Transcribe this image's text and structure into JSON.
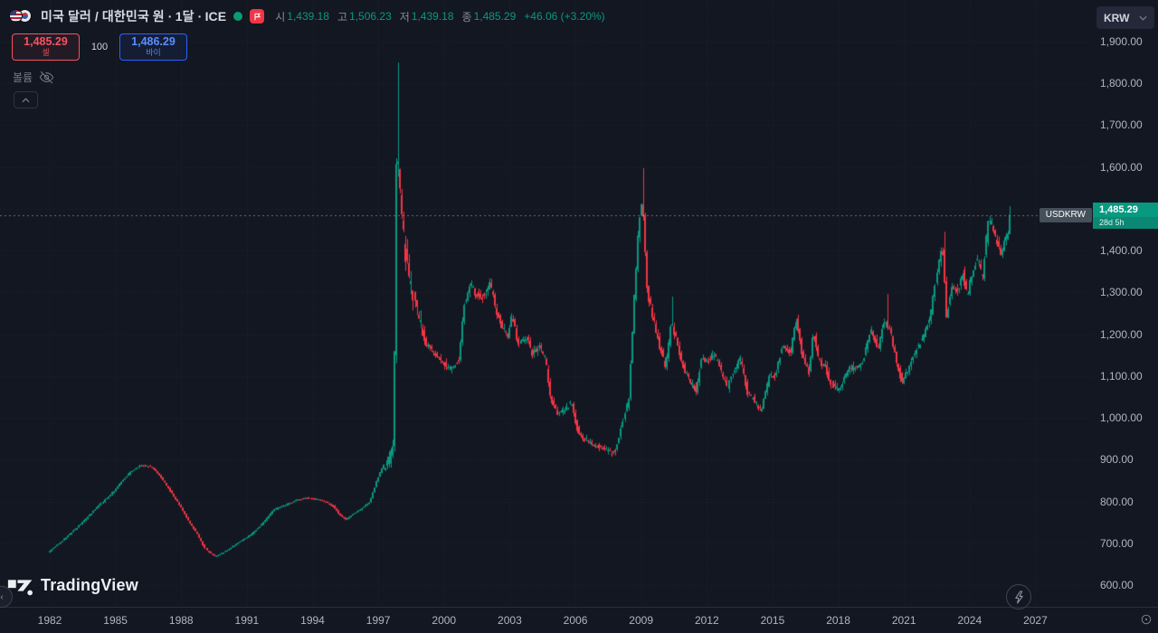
{
  "header": {
    "title": "미국 달러 / 대한민국 원 ∙ 1달 ∙ ICE",
    "open_label": "시",
    "open_value": "1,439.18",
    "high_label": "고",
    "high_value": "1,506.23",
    "low_label": "저",
    "low_value": "1,439.18",
    "close_label": "종",
    "close_value": "1,485.29",
    "change_value": "+46.06 (+3.20%)"
  },
  "trade_panel": {
    "sell_price": "1,485.29",
    "sell_label": "셀",
    "quantity": "100",
    "buy_price": "1,486.29",
    "buy_label": "바이"
  },
  "legend": {
    "volume_label": "볼륨"
  },
  "price_scale": {
    "currency_label": "KRW",
    "labels": [
      "1,900.00",
      "1,800.00",
      "1,700.00",
      "1,600.00",
      "1,500.00",
      "1,400.00",
      "1,300.00",
      "1,200.00",
      "1,100.00",
      "1,000.00",
      "900.00",
      "800.00",
      "700.00",
      "600.00"
    ],
    "price_line": {
      "symbol_label": "USDKRW",
      "price": "1,485.29",
      "countdown": "28d 5h"
    }
  },
  "time_scale": {
    "labels": [
      "1982",
      "1985",
      "1988",
      "1991",
      "1994",
      "1997",
      "2000",
      "2003",
      "2006",
      "2009",
      "2012",
      "2015",
      "2018",
      "2021",
      "2024",
      "2027"
    ]
  },
  "watermark": {
    "brand": "TradingView"
  },
  "chart_data": {
    "type": "candlestick",
    "title": "미국 달러 / 대한민국 원 ∙ 1달 ∙ ICE",
    "symbol": "USDKRW",
    "interval": "1M",
    "up_color": "#089981",
    "down_color": "#f23645",
    "x_ticks": [
      1982,
      1985,
      1988,
      1991,
      1994,
      1997,
      2000,
      2003,
      2006,
      2009,
      2012,
      2015,
      2018,
      2021,
      2024,
      2027
    ],
    "y_ticks": [
      600,
      700,
      800,
      900,
      1000,
      1100,
      1200,
      1300,
      1400,
      1500,
      1600,
      1700,
      1800,
      1900
    ],
    "y_domain": [
      560,
      1920
    ],
    "price_line_value": 1485.29,
    "current_bar": {
      "open": 1439.18,
      "high": 1506.23,
      "low": 1439.18,
      "close": 1485.29,
      "change": 46.06,
      "change_pct": 3.2
    },
    "last_bar_time": 2025.83,
    "anchors": [
      [
        1982.0,
        678
      ],
      [
        1982.5,
        700
      ],
      [
        1983.0,
        722
      ],
      [
        1983.5,
        746
      ],
      [
        1984.0,
        772
      ],
      [
        1984.5,
        800
      ],
      [
        1985.0,
        825
      ],
      [
        1985.4,
        852
      ],
      [
        1985.8,
        872
      ],
      [
        1986.2,
        886
      ],
      [
        1986.7,
        884
      ],
      [
        1987.1,
        862
      ],
      [
        1987.5,
        832
      ],
      [
        1988.0,
        792
      ],
      [
        1988.4,
        755
      ],
      [
        1988.8,
        724
      ],
      [
        1989.2,
        685
      ],
      [
        1989.6,
        668
      ],
      [
        1990.0,
        678
      ],
      [
        1990.4,
        692
      ],
      [
        1990.8,
        705
      ],
      [
        1991.3,
        722
      ],
      [
        1991.8,
        748
      ],
      [
        1992.3,
        780
      ],
      [
        1992.8,
        790
      ],
      [
        1993.3,
        802
      ],
      [
        1993.8,
        808
      ],
      [
        1994.2,
        806
      ],
      [
        1994.6,
        800
      ],
      [
        1995.0,
        788
      ],
      [
        1995.3,
        768
      ],
      [
        1995.6,
        756
      ],
      [
        1995.9,
        770
      ],
      [
        1996.3,
        782
      ],
      [
        1996.7,
        800
      ],
      [
        1997.0,
        848
      ],
      [
        1997.3,
        885
      ],
      [
        1997.6,
        895
      ],
      [
        1997.8,
        958
      ],
      [
        1997.92,
        1640
      ],
      [
        1998.08,
        1555
      ],
      [
        1998.3,
        1395
      ],
      [
        1998.6,
        1310
      ],
      [
        1998.9,
        1240
      ],
      [
        1999.2,
        1180
      ],
      [
        1999.6,
        1158
      ],
      [
        2000.0,
        1130
      ],
      [
        2000.4,
        1115
      ],
      [
        2000.75,
        1140
      ],
      [
        2001.0,
        1270
      ],
      [
        2001.3,
        1318
      ],
      [
        2001.6,
        1292
      ],
      [
        2001.9,
        1290
      ],
      [
        2002.2,
        1320
      ],
      [
        2002.5,
        1250
      ],
      [
        2002.8,
        1212
      ],
      [
        2003.0,
        1192
      ],
      [
        2003.2,
        1248
      ],
      [
        2003.5,
        1172
      ],
      [
        2003.8,
        1195
      ],
      [
        2004.1,
        1152
      ],
      [
        2004.4,
        1170
      ],
      [
        2004.7,
        1142
      ],
      [
        2004.95,
        1042
      ],
      [
        2005.3,
        1006
      ],
      [
        2005.6,
        1024
      ],
      [
        2005.9,
        1035
      ],
      [
        2006.2,
        966
      ],
      [
        2006.5,
        950
      ],
      [
        2006.9,
        936
      ],
      [
        2007.3,
        930
      ],
      [
        2007.7,
        916
      ],
      [
        2007.95,
        921
      ],
      [
        2008.2,
        986
      ],
      [
        2008.5,
        1046
      ],
      [
        2008.75,
        1290
      ],
      [
        2008.95,
        1460
      ],
      [
        2009.12,
        1535
      ],
      [
        2009.35,
        1300
      ],
      [
        2009.6,
        1242
      ],
      [
        2009.9,
        1172
      ],
      [
        2010.2,
        1122
      ],
      [
        2010.45,
        1228
      ],
      [
        2010.7,
        1182
      ],
      [
        2011.0,
        1122
      ],
      [
        2011.3,
        1086
      ],
      [
        2011.6,
        1066
      ],
      [
        2011.85,
        1150
      ],
      [
        2012.1,
        1132
      ],
      [
        2012.4,
        1156
      ],
      [
        2012.7,
        1120
      ],
      [
        2013.0,
        1076
      ],
      [
        2013.3,
        1116
      ],
      [
        2013.6,
        1140
      ],
      [
        2013.9,
        1062
      ],
      [
        2014.2,
        1046
      ],
      [
        2014.55,
        1012
      ],
      [
        2014.9,
        1096
      ],
      [
        2015.2,
        1100
      ],
      [
        2015.55,
        1180
      ],
      [
        2015.9,
        1156
      ],
      [
        2016.15,
        1235
      ],
      [
        2016.45,
        1150
      ],
      [
        2016.75,
        1106
      ],
      [
        2016.95,
        1205
      ],
      [
        2017.2,
        1136
      ],
      [
        2017.5,
        1122
      ],
      [
        2017.8,
        1076
      ],
      [
        2018.1,
        1066
      ],
      [
        2018.5,
        1116
      ],
      [
        2018.9,
        1121
      ],
      [
        2019.2,
        1136
      ],
      [
        2019.55,
        1216
      ],
      [
        2019.9,
        1162
      ],
      [
        2020.2,
        1240
      ],
      [
        2020.5,
        1196
      ],
      [
        2020.8,
        1122
      ],
      [
        2021.0,
        1086
      ],
      [
        2021.35,
        1126
      ],
      [
        2021.7,
        1170
      ],
      [
        2022.0,
        1196
      ],
      [
        2022.3,
        1242
      ],
      [
        2022.6,
        1352
      ],
      [
        2022.8,
        1425
      ],
      [
        2023.0,
        1242
      ],
      [
        2023.25,
        1312
      ],
      [
        2023.5,
        1300
      ],
      [
        2023.75,
        1346
      ],
      [
        2023.95,
        1292
      ],
      [
        2024.2,
        1352
      ],
      [
        2024.45,
        1386
      ],
      [
        2024.65,
        1332
      ],
      [
        2024.9,
        1462
      ],
      [
        2025.05,
        1472
      ],
      [
        2025.2,
        1442
      ],
      [
        2025.4,
        1406
      ],
      [
        2025.55,
        1390
      ],
      [
        2025.7,
        1422
      ],
      [
        2025.83,
        1439.18
      ]
    ],
    "wick_spikes": [
      [
        1997.92,
        1850
      ],
      [
        2009.12,
        1597
      ],
      [
        2010.45,
        1290
      ],
      [
        2016.15,
        1245
      ],
      [
        2020.25,
        1296
      ],
      [
        2022.8,
        1445
      ]
    ]
  }
}
